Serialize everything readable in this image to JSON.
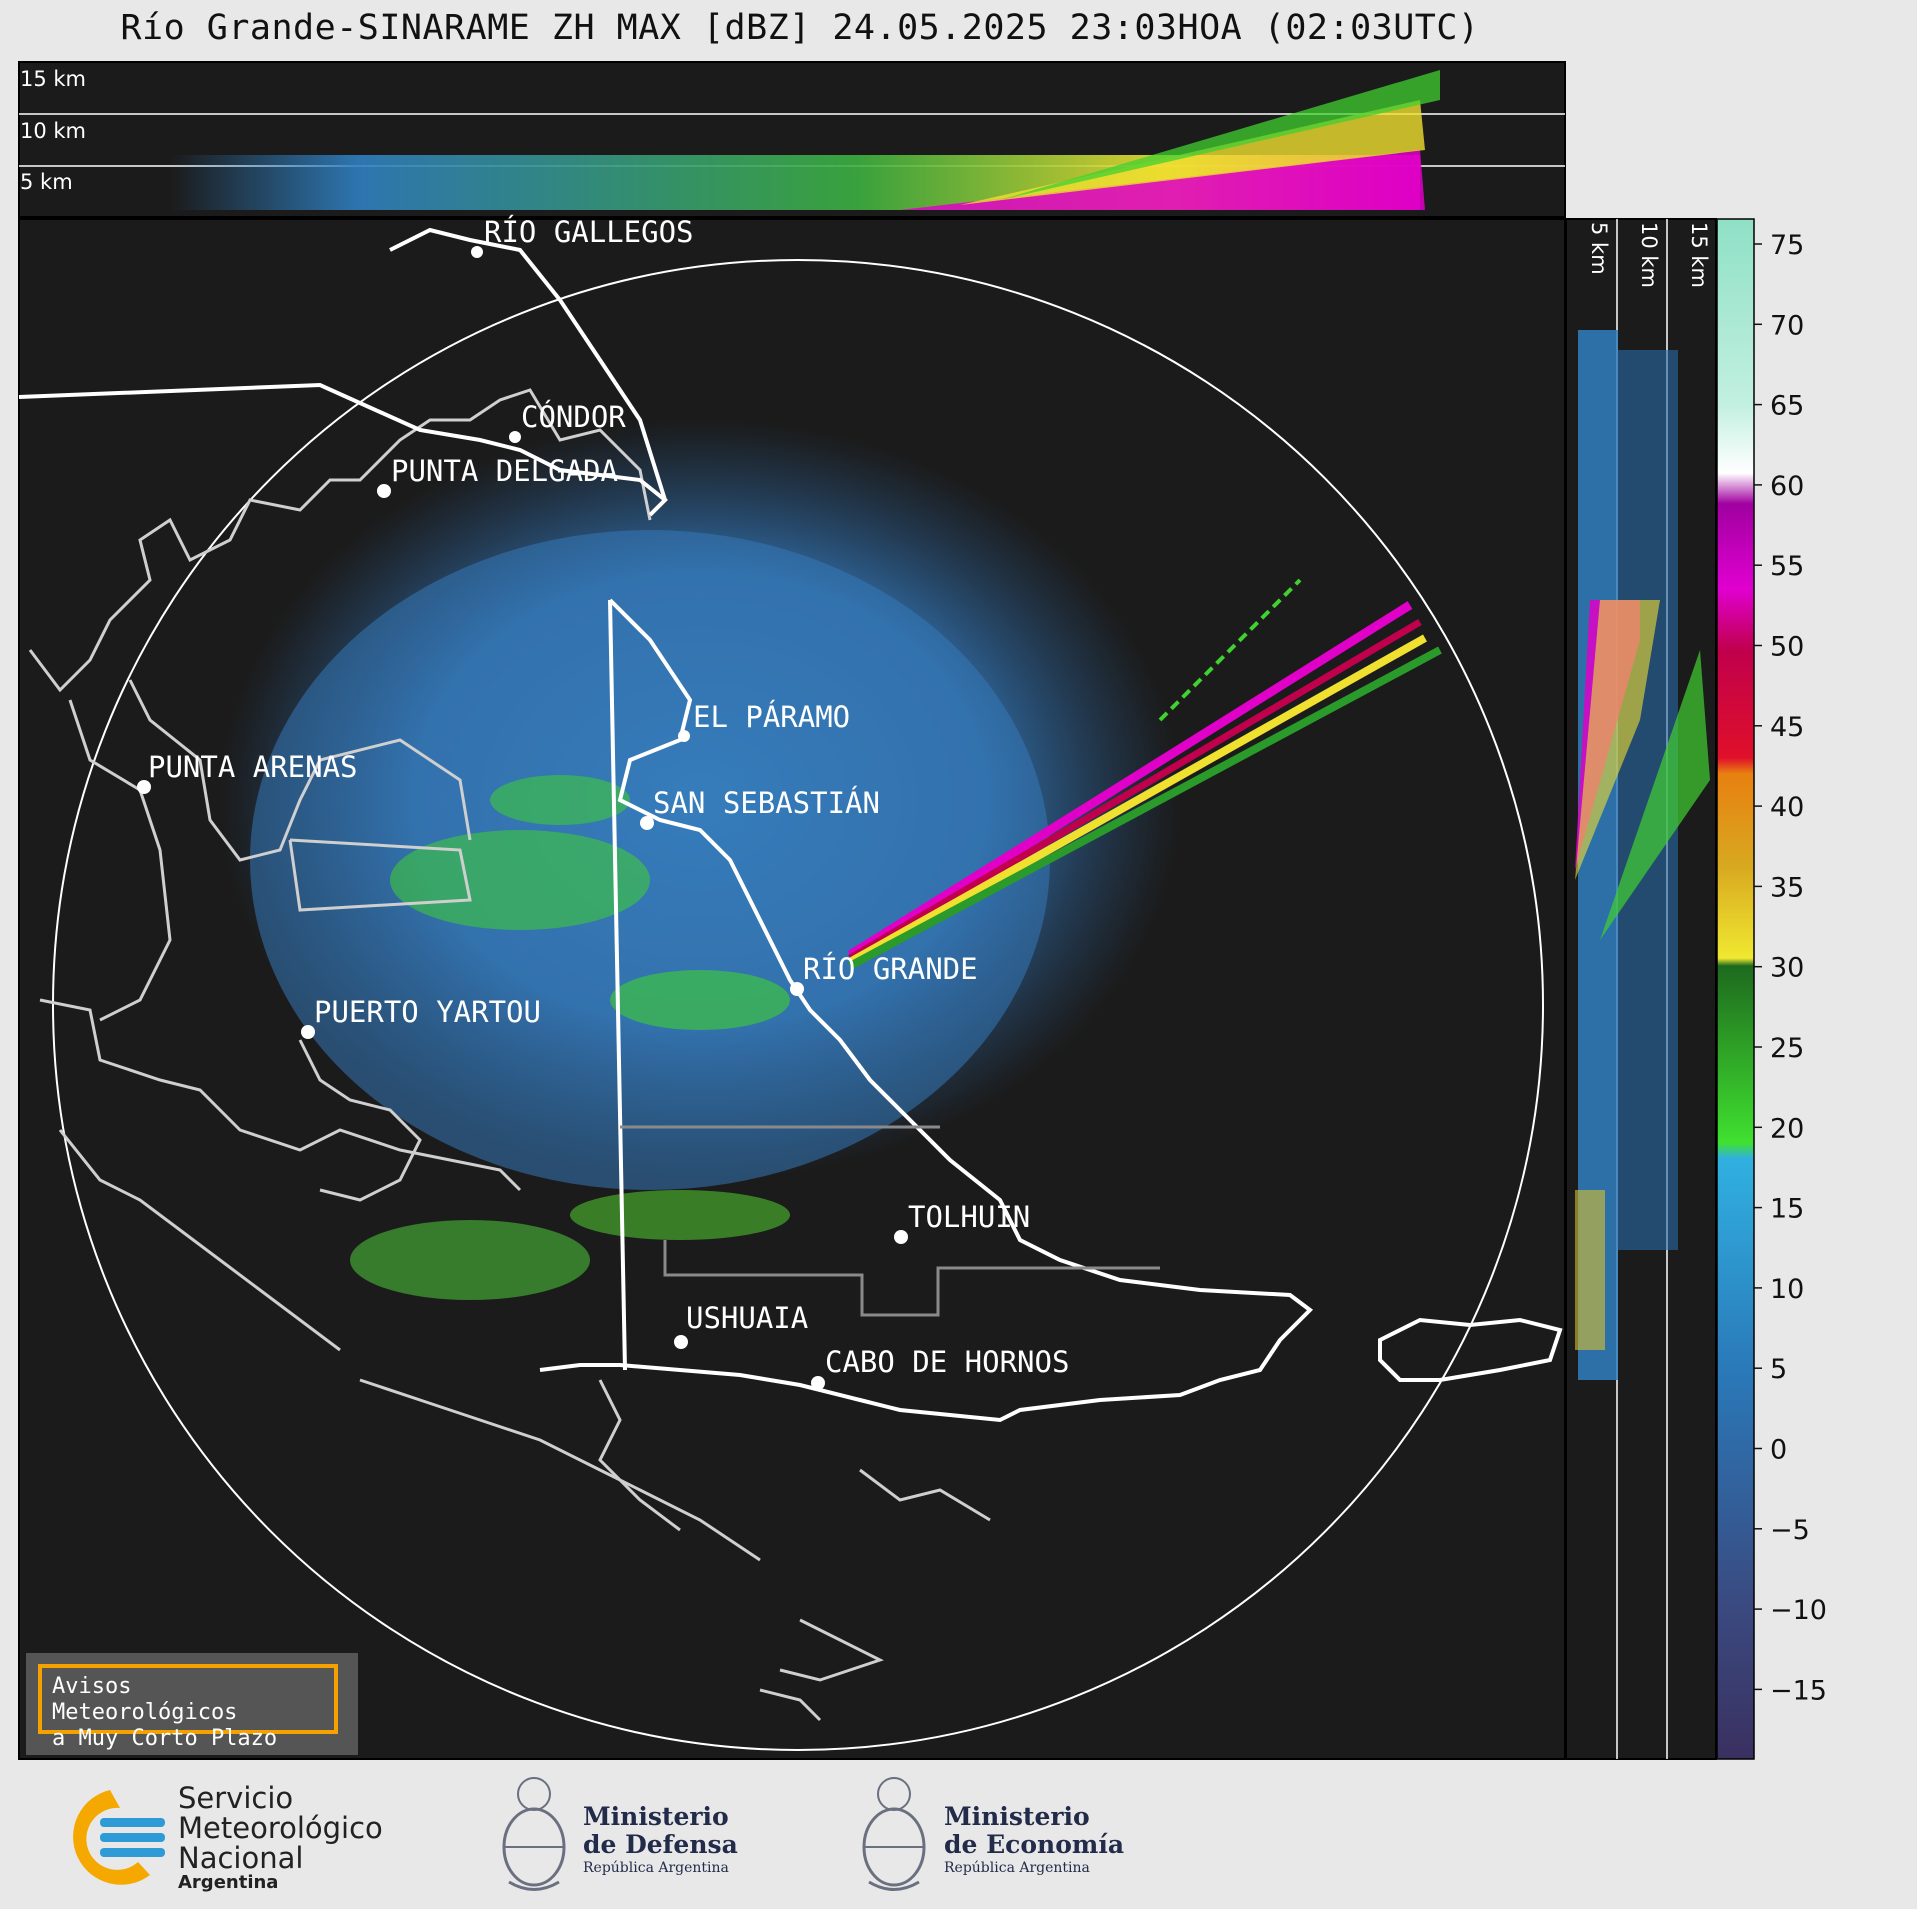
{
  "title": "Río Grande-SINARAME ZH MAX [dBZ] 24.05.2025 23:03HOA (02:03UTC)",
  "top_panel": {
    "alt_labels": [
      "15 km",
      "10 km",
      "5 km"
    ]
  },
  "side_panel": {
    "alt_labels": [
      "5 km",
      "10 km",
      "15 km"
    ]
  },
  "colorbar": {
    "ticks": [
      "75",
      "70",
      "65",
      "60",
      "55",
      "50",
      "45",
      "40",
      "35",
      "30",
      "25",
      "20",
      "15",
      "10",
      "5",
      "0",
      "−5",
      "−10",
      "−15"
    ]
  },
  "cities": [
    {
      "name": "RÍO GALLEGOS"
    },
    {
      "name": "CÓNDOR"
    },
    {
      "name": "PUNTA DELGADA"
    },
    {
      "name": "EL PÁRAMO"
    },
    {
      "name": "PUNTA ARENAS"
    },
    {
      "name": "SAN SEBASTIÁN"
    },
    {
      "name": "RÍO GRANDE"
    },
    {
      "name": "PUERTO YARTOU"
    },
    {
      "name": "TOLHUIN"
    },
    {
      "name": "USHUAIA"
    },
    {
      "name": "CABO DE HORNOS"
    }
  ],
  "warning_box": {
    "line1": "Avisos Meteorológicos",
    "line2": "a Muy Corto Plazo"
  },
  "logos": {
    "smn": {
      "line1": "Servicio",
      "line2": "Meteorológico",
      "line3": "Nacional",
      "line4": "Argentina"
    },
    "defensa": {
      "line1": "Ministerio",
      "line2": "de Defensa",
      "line3": "República Argentina"
    },
    "economia": {
      "line1": "Ministerio",
      "line2": "de Economía",
      "line3": "República Argentina"
    }
  },
  "colors": {
    "background": "#1b1b1b",
    "page": "#e8e8e8",
    "accent_orange": "#f5a100"
  }
}
